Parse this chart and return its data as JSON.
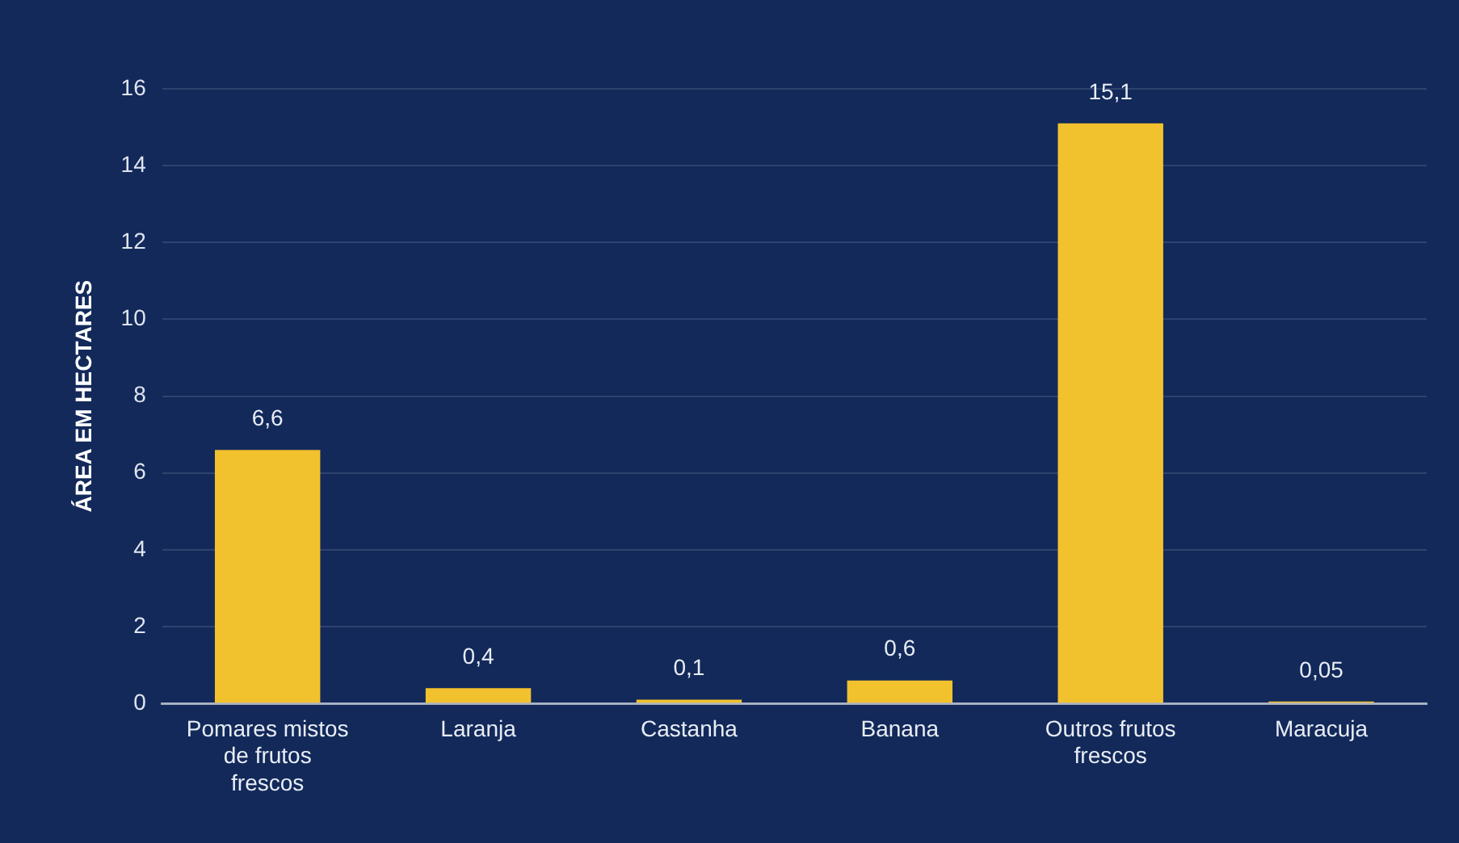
{
  "chart_data": {
    "type": "bar",
    "ylabel": "ÁREA EM HECTARES",
    "categories": [
      "Pomares mistos de frutos frescos",
      "Laranja",
      "Castanha",
      "Banana",
      "Outros frutos frescos",
      "Maracuja"
    ],
    "values": [
      6.6,
      0.4,
      0.1,
      0.6,
      15.1,
      0.05
    ],
    "value_labels": [
      "6,6",
      "0,4",
      "0,1",
      "0,6",
      "15,1",
      "0,05"
    ],
    "color": "#f2c12e",
    "ylim": [
      0,
      16
    ],
    "yticks": [
      0,
      2,
      4,
      6,
      8,
      10,
      12,
      14,
      16
    ],
    "grid": "y",
    "legend": false
  }
}
